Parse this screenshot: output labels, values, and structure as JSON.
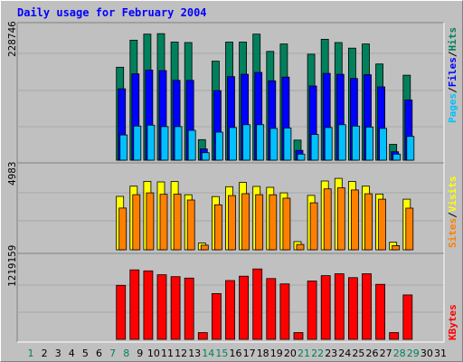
{
  "title": "Daily usage for February 2004",
  "colors": {
    "hits": "#00805c",
    "files": "#0000ff",
    "pages": "#00c0ff",
    "visits": "#ffff00",
    "sites": "#ff8000",
    "kbytes": "#ff0000",
    "weekend": "#00805c",
    "weekday": "#000000"
  },
  "legend": {
    "top": [
      "Pages",
      "/",
      "Files",
      "/",
      "Hits"
    ],
    "middle": [
      "Sites",
      "/",
      "Visits"
    ],
    "bottom": [
      "KBytes"
    ]
  },
  "chart_data": [
    {
      "type": "bar",
      "panel": "hits-files-pages",
      "title": "Daily usage for February 2004",
      "ylabel_max": "228746",
      "ymax": 228746,
      "categories": [
        "1",
        "2",
        "3",
        "4",
        "5",
        "6",
        "7",
        "8",
        "9",
        "10",
        "11",
        "12",
        "13",
        "14",
        "15",
        "16",
        "17",
        "18",
        "19",
        "20",
        "21",
        "22",
        "23",
        "24",
        "25",
        "26",
        "27",
        "28",
        "29",
        "30",
        "31"
      ],
      "series": [
        {
          "name": "Hits",
          "values": [
            null,
            null,
            null,
            null,
            null,
            null,
            null,
            199000,
            257000,
            270000,
            271000,
            253000,
            252000,
            44000,
            212000,
            253000,
            253000,
            270000,
            233000,
            249000,
            43000,
            227000,
            259000,
            252000,
            240000,
            249000,
            206000,
            34000,
            182000,
            null,
            null
          ]
        },
        {
          "name": "Files",
          "values": [
            null,
            null,
            null,
            null,
            null,
            null,
            null,
            153000,
            185000,
            193000,
            192000,
            171000,
            171000,
            24000,
            149000,
            179000,
            184000,
            188000,
            170000,
            178000,
            21000,
            159000,
            186000,
            184000,
            175000,
            183000,
            157000,
            18000,
            129000,
            null,
            null
          ]
        },
        {
          "name": "Pages",
          "values": [
            null,
            null,
            null,
            null,
            null,
            null,
            null,
            54000,
            73000,
            75000,
            72000,
            72000,
            64000,
            16000,
            60000,
            70000,
            76000,
            76000,
            68000,
            69000,
            13000,
            55000,
            70000,
            76000,
            73000,
            71000,
            68000,
            13000,
            51000,
            null,
            null
          ]
        }
      ]
    },
    {
      "type": "bar",
      "panel": "visits-sites",
      "ylabel_max": "4983",
      "ymax": 4983,
      "categories": [
        "1",
        "2",
        "3",
        "4",
        "5",
        "6",
        "7",
        "8",
        "9",
        "10",
        "11",
        "12",
        "13",
        "14",
        "15",
        "16",
        "17",
        "18",
        "19",
        "20",
        "21",
        "22",
        "23",
        "24",
        "25",
        "26",
        "27",
        "28",
        "29",
        "30",
        "31"
      ],
      "series": [
        {
          "name": "Visits",
          "values": [
            null,
            null,
            null,
            null,
            null,
            null,
            null,
            4590,
            5470,
            5890,
            5840,
            5870,
            4730,
            580,
            4580,
            5430,
            5790,
            5450,
            5370,
            4900,
            700,
            4680,
            5920,
            6140,
            5880,
            5470,
            4800,
            650,
            4350,
            null,
            null
          ]
        },
        {
          "name": "Sites",
          "values": [
            null,
            null,
            null,
            null,
            null,
            null,
            null,
            3590,
            4740,
            4900,
            4770,
            4780,
            4280,
            400,
            3870,
            4660,
            4830,
            4740,
            4730,
            4440,
            460,
            4040,
            5240,
            5330,
            5150,
            4820,
            4350,
            360,
            3580,
            null,
            null
          ]
        }
      ]
    },
    {
      "type": "bar",
      "panel": "kbytes",
      "ylabel_max": "1219159",
      "ymax": 1219159,
      "categories": [
        "1",
        "2",
        "3",
        "4",
        "5",
        "6",
        "7",
        "8",
        "9",
        "10",
        "11",
        "12",
        "13",
        "14",
        "15",
        "16",
        "17",
        "18",
        "19",
        "20",
        "21",
        "22",
        "23",
        "24",
        "25",
        "26",
        "27",
        "28",
        "29",
        "30",
        "31"
      ],
      "series": [
        {
          "name": "KBytes",
          "values": [
            null,
            null,
            null,
            null,
            null,
            null,
            null,
            1120000,
            1440000,
            1420000,
            1340000,
            1300000,
            1270000,
            140000,
            950000,
            1220000,
            1310000,
            1460000,
            1260000,
            1150000,
            140000,
            1210000,
            1320000,
            1360000,
            1280000,
            1360000,
            1140000,
            140000,
            920000,
            null,
            null
          ]
        }
      ]
    }
  ],
  "days": [
    "1",
    "2",
    "3",
    "4",
    "5",
    "6",
    "7",
    "8",
    "9",
    "10",
    "11",
    "12",
    "13",
    "14",
    "15",
    "16",
    "17",
    "18",
    "19",
    "20",
    "21",
    "22",
    "23",
    "24",
    "25",
    "26",
    "27",
    "28",
    "29",
    "30",
    "31"
  ],
  "weekend_days": [
    "1",
    "7",
    "8",
    "14",
    "15",
    "21",
    "22",
    "28",
    "29"
  ]
}
